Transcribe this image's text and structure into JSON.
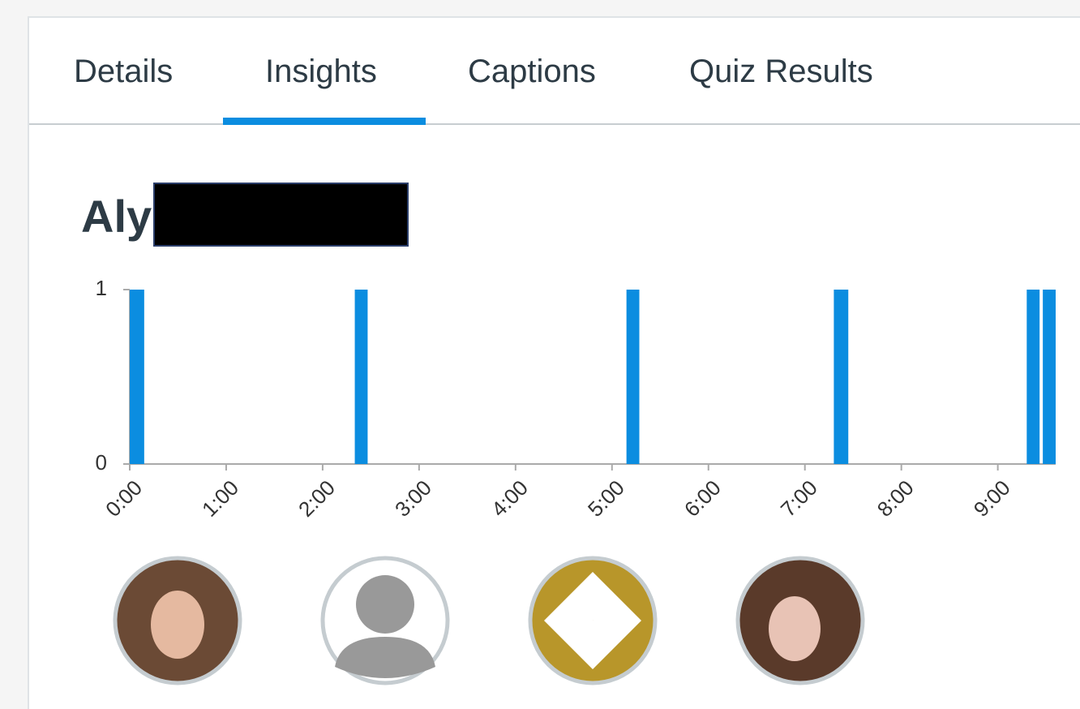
{
  "tabs": [
    "Details",
    "Insights",
    "Captions",
    "Quiz Results"
  ],
  "viewer": {
    "name": "Aly"
  },
  "chart_data": {
    "type": "histogram",
    "bins": [
      0,
      9,
      140,
      148,
      309,
      317,
      438,
      447,
      558,
      566,
      568,
      576
    ],
    "values": [
      1,
      0,
      1,
      0,
      1,
      0,
      1,
      0,
      1,
      0,
      1
    ],
    "color": "#0b8de0",
    "xlim": [
      0,
      576
    ],
    "xticks": [
      {
        "value": 0,
        "label": "0:00"
      },
      {
        "value": 60,
        "label": "1:00"
      },
      {
        "value": 120,
        "label": "2:00"
      },
      {
        "value": 180,
        "label": "3:00"
      },
      {
        "value": 240,
        "label": "4:00"
      },
      {
        "value": 300,
        "label": "5:00"
      },
      {
        "value": 360,
        "label": "6:00"
      },
      {
        "value": 420,
        "label": "7:00"
      },
      {
        "value": 480,
        "label": "8:00"
      },
      {
        "value": 540,
        "label": "9:00"
      }
    ],
    "ylim": [
      0,
      1
    ],
    "yticks": [
      0,
      1
    ]
  }
}
